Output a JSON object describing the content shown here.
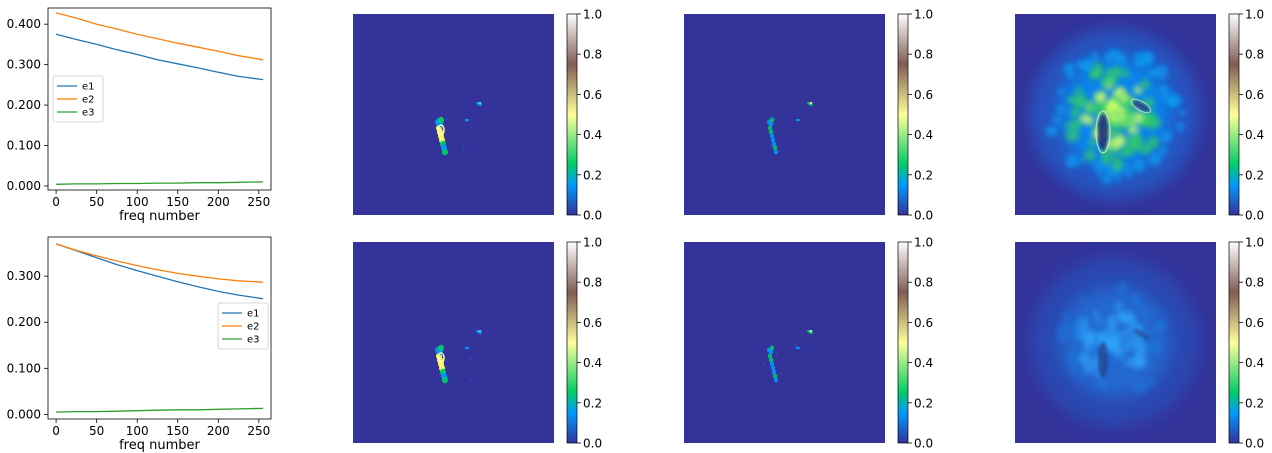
{
  "colors": {
    "e1": "#1f77b4",
    "e2": "#ff7f0e",
    "e3": "#2ca02c",
    "map_background": "#333399"
  },
  "colormap_name": "terrain",
  "chart_data": [
    {
      "type": "line",
      "panel": "top-left",
      "xlabel": "freq number",
      "ylabel": "",
      "xlim": [
        -10,
        265
      ],
      "ylim": [
        -0.01,
        0.44
      ],
      "xticks": [
        0,
        50,
        100,
        150,
        200,
        250
      ],
      "yticks": [
        0.0,
        0.1,
        0.2,
        0.3,
        0.4
      ],
      "ytick_labels": [
        "0.000",
        "0.100",
        "0.200",
        "0.300",
        "0.400"
      ],
      "legend_position": "center-left",
      "x": [
        0,
        25,
        50,
        75,
        100,
        125,
        150,
        175,
        200,
        225,
        255
      ],
      "series": [
        {
          "name": "e1",
          "values": [
            0.375,
            0.362,
            0.35,
            0.337,
            0.325,
            0.312,
            0.302,
            0.292,
            0.281,
            0.271,
            0.263
          ]
        },
        {
          "name": "e2",
          "values": [
            0.428,
            0.415,
            0.4,
            0.388,
            0.375,
            0.364,
            0.353,
            0.343,
            0.333,
            0.322,
            0.312
          ]
        },
        {
          "name": "e3",
          "values": [
            0.004,
            0.005,
            0.005,
            0.006,
            0.006,
            0.007,
            0.007,
            0.008,
            0.008,
            0.009,
            0.01
          ]
        }
      ]
    },
    {
      "type": "line",
      "panel": "bottom-left",
      "xlabel": "freq number",
      "ylabel": "",
      "xlim": [
        -10,
        265
      ],
      "ylim": [
        -0.01,
        0.385
      ],
      "xticks": [
        0,
        50,
        100,
        150,
        200,
        250
      ],
      "yticks": [
        0.0,
        0.1,
        0.2,
        0.3
      ],
      "ytick_labels": [
        "0.000",
        "0.100",
        "0.200",
        "0.300"
      ],
      "legend_position": "center-right",
      "x": [
        0,
        25,
        50,
        75,
        100,
        125,
        150,
        175,
        200,
        225,
        255
      ],
      "series": [
        {
          "name": "e1",
          "values": [
            0.37,
            0.355,
            0.34,
            0.325,
            0.312,
            0.3,
            0.288,
            0.277,
            0.267,
            0.259,
            0.251
          ]
        },
        {
          "name": "e2",
          "values": [
            0.37,
            0.356,
            0.344,
            0.333,
            0.323,
            0.314,
            0.306,
            0.3,
            0.294,
            0.29,
            0.287
          ]
        },
        {
          "name": "e3",
          "values": [
            0.005,
            0.006,
            0.006,
            0.007,
            0.008,
            0.009,
            0.01,
            0.01,
            0.011,
            0.012,
            0.013
          ]
        }
      ]
    },
    {
      "type": "heatmap",
      "panel": "row1-col2",
      "clim": [
        0.0,
        1.0
      ],
      "colorbar_ticks": [
        "0.0",
        "0.2",
        "0.4",
        "0.6",
        "0.8",
        "1.0"
      ],
      "pattern": "sparse-sources"
    },
    {
      "type": "heatmap",
      "panel": "row1-col3",
      "clim": [
        0.0,
        1.0
      ],
      "colorbar_ticks": [
        "0.0",
        "0.2",
        "0.4",
        "0.6",
        "0.8",
        "1.0"
      ],
      "pattern": "sparse-sources-faint"
    },
    {
      "type": "heatmap",
      "panel": "row1-col4",
      "clim": [
        0.0,
        1.0
      ],
      "colorbar_ticks": [
        "0.0",
        "0.2",
        "0.4",
        "0.6",
        "0.8",
        "1.0"
      ],
      "pattern": "diffuse-bright"
    },
    {
      "type": "heatmap",
      "panel": "row2-col2",
      "clim": [
        0.0,
        1.0
      ],
      "colorbar_ticks": [
        "0.0",
        "0.2",
        "0.4",
        "0.6",
        "0.8",
        "1.0"
      ],
      "pattern": "sparse-sources"
    },
    {
      "type": "heatmap",
      "panel": "row2-col3",
      "clim": [
        0.0,
        1.0
      ],
      "colorbar_ticks": [
        "0.0",
        "0.2",
        "0.4",
        "0.6",
        "0.8",
        "1.0"
      ],
      "pattern": "sparse-sources-faint"
    },
    {
      "type": "heatmap",
      "panel": "row2-col4",
      "clim": [
        0.0,
        1.0
      ],
      "colorbar_ticks": [
        "0.0",
        "0.2",
        "0.4",
        "0.6",
        "0.8",
        "1.0"
      ],
      "pattern": "diffuse-faint"
    }
  ]
}
